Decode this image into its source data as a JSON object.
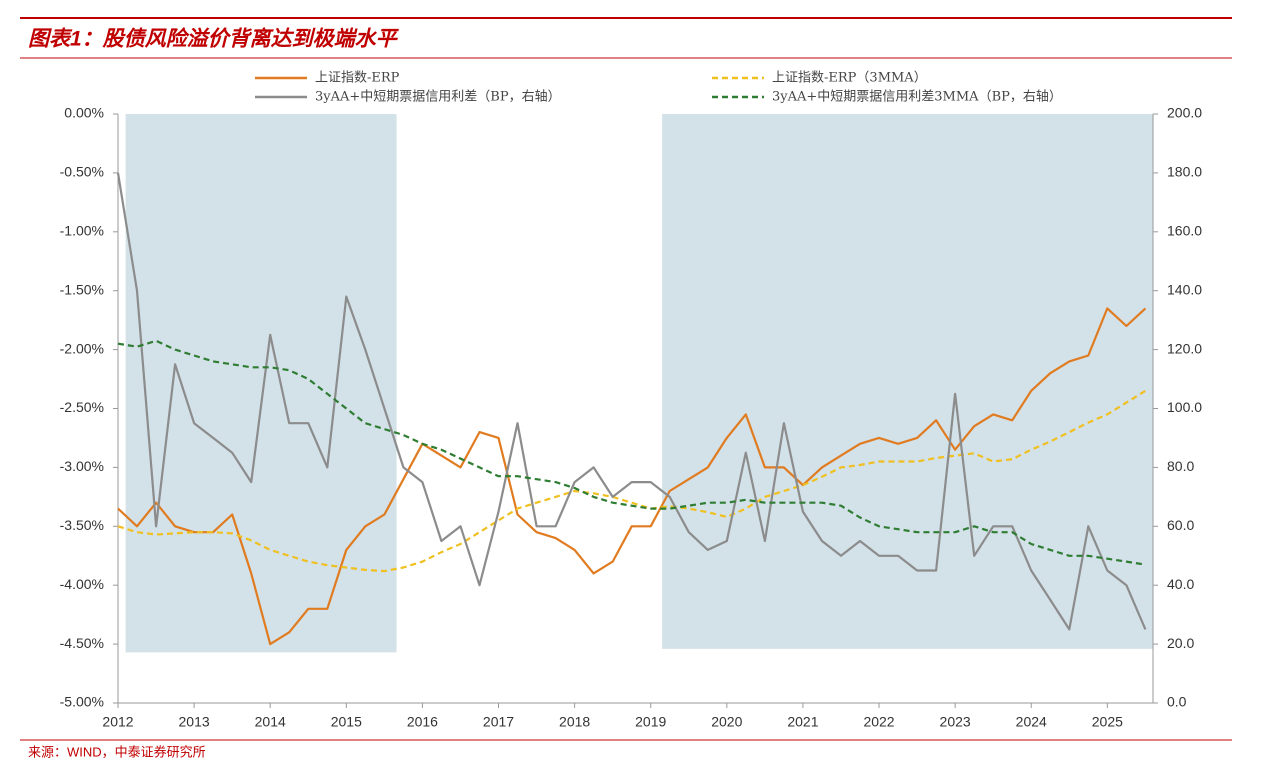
{
  "chart_data": {
    "type": "line",
    "title": "图表1：股债风险溢价背离达到极端水平",
    "source": "来源：WIND，中泰证券研究所",
    "xlim": [
      2012,
      2025.6
    ],
    "xticks": [
      2012,
      2013,
      2014,
      2015,
      2016,
      2017,
      2018,
      2019,
      2020,
      2021,
      2022,
      2023,
      2024,
      2025
    ],
    "ylim": [
      -5,
      0
    ],
    "yticks": [
      {
        "value": 0,
        "label": "0.00%"
      },
      {
        "value": -0.5,
        "label": "-0.50%"
      },
      {
        "value": -1,
        "label": "-1.00%"
      },
      {
        "value": -1.5,
        "label": "-1.50%"
      },
      {
        "value": -2,
        "label": "-2.00%"
      },
      {
        "value": -2.5,
        "label": "-2.50%"
      },
      {
        "value": -3,
        "label": "-3.00%"
      },
      {
        "value": -3.5,
        "label": "-3.50%"
      },
      {
        "value": -4,
        "label": "-4.00%"
      },
      {
        "value": -4.5,
        "label": "-4.50%"
      },
      {
        "value": -5,
        "label": "-5.00%"
      }
    ],
    "y2lim": [
      0,
      200
    ],
    "y2ticks": [
      {
        "value": 200,
        "label": "200.0"
      },
      {
        "value": 180,
        "label": "180.0"
      },
      {
        "value": 160,
        "label": "160.0"
      },
      {
        "value": 140,
        "label": "140.0"
      },
      {
        "value": 120,
        "label": "120.0"
      },
      {
        "value": 100,
        "label": "100.0"
      },
      {
        "value": 80,
        "label": "80.0"
      },
      {
        "value": 60,
        "label": "60.0"
      },
      {
        "value": 40,
        "label": "40.0"
      },
      {
        "value": 20,
        "label": "20.0"
      },
      {
        "value": 0,
        "label": "0.0"
      }
    ],
    "shaded_regions": [
      {
        "x": [
          2012.1,
          2015.66
        ],
        "y": [
          -4.57,
          0
        ],
        "color": "#d3e1e8"
      },
      {
        "x": [
          2019.15,
          2025.6
        ],
        "y": [
          -4.54,
          0
        ],
        "color": "#d3e1e8"
      }
    ],
    "x": [
      2012,
      2012.25,
      2012.5,
      2012.75,
      2013,
      2013.25,
      2013.5,
      2013.75,
      2014,
      2014.25,
      2014.5,
      2014.75,
      2015,
      2015.25,
      2015.5,
      2015.75,
      2016,
      2016.25,
      2016.5,
      2016.75,
      2017,
      2017.25,
      2017.5,
      2017.75,
      2018,
      2018.25,
      2018.5,
      2018.75,
      2019,
      2019.25,
      2019.5,
      2019.75,
      2020,
      2020.25,
      2020.5,
      2020.75,
      2021,
      2021.25,
      2021.5,
      2021.75,
      2022,
      2022.25,
      2022.5,
      2022.75,
      2023,
      2023.25,
      2023.5,
      2023.75,
      2024,
      2024.25,
      2024.5,
      2024.75,
      2025,
      2025.25,
      2025.5
    ],
    "series": [
      {
        "name": "上证指数-ERP",
        "color": "#e07b20",
        "dash": false,
        "axis": "y",
        "values": [
          -3.35,
          -3.5,
          -3.3,
          -3.5,
          -3.55,
          -3.55,
          -3.4,
          -3.9,
          -4.5,
          -4.4,
          -4.2,
          -4.2,
          -3.7,
          -3.5,
          -3.4,
          -3.1,
          -2.8,
          -2.9,
          -3.0,
          -2.7,
          -2.75,
          -3.4,
          -3.55,
          -3.6,
          -3.7,
          -3.9,
          -3.8,
          -3.5,
          -3.5,
          -3.2,
          -3.1,
          -3.0,
          -2.75,
          -2.55,
          -3.0,
          -3.0,
          -3.15,
          -3.0,
          -2.9,
          -2.8,
          -2.75,
          -2.8,
          -2.75,
          -2.6,
          -2.85,
          -2.65,
          -2.55,
          -2.6,
          -2.35,
          -2.2,
          -2.1,
          -2.05,
          -1.65,
          -1.8,
          -1.65
        ]
      },
      {
        "name": "上证指数-ERP（3MMA）",
        "color": "#f0c020",
        "dash": true,
        "axis": "y",
        "values": [
          -3.5,
          -3.55,
          -3.57,
          -3.56,
          -3.55,
          -3.55,
          -3.56,
          -3.62,
          -3.7,
          -3.75,
          -3.8,
          -3.83,
          -3.85,
          -3.87,
          -3.88,
          -3.85,
          -3.8,
          -3.72,
          -3.65,
          -3.55,
          -3.45,
          -3.35,
          -3.3,
          -3.25,
          -3.2,
          -3.22,
          -3.25,
          -3.3,
          -3.35,
          -3.33,
          -3.35,
          -3.38,
          -3.42,
          -3.35,
          -3.25,
          -3.2,
          -3.15,
          -3.08,
          -3.0,
          -2.98,
          -2.95,
          -2.95,
          -2.95,
          -2.92,
          -2.9,
          -2.88,
          -2.95,
          -2.93,
          -2.85,
          -2.78,
          -2.7,
          -2.62,
          -2.55,
          -2.45,
          -2.35
        ]
      },
      {
        "name": "3yAA+中短期票据信用利差（BP，右轴）",
        "color": "#8c8c8c",
        "dash": false,
        "axis": "y2",
        "values": [
          180,
          140,
          60,
          115,
          95,
          90,
          85,
          75,
          125,
          95,
          95,
          80,
          138,
          120,
          100,
          80,
          75,
          55,
          60,
          40,
          65,
          95,
          60,
          60,
          75,
          80,
          70,
          75,
          75,
          70,
          58,
          52,
          55,
          85,
          55,
          95,
          65,
          55,
          50,
          55,
          50,
          50,
          45,
          45,
          105,
          50,
          60,
          60,
          45,
          35,
          25,
          60,
          45,
          40,
          25
        ]
      },
      {
        "name": "3yAA+中短期票据信用利差3MMA（BP，右轴）",
        "color": "#2e7d32",
        "dash": true,
        "axis": "y2",
        "values": [
          122,
          121,
          123,
          120,
          118,
          116,
          115,
          114,
          114,
          113,
          110,
          105,
          100,
          95,
          93,
          91,
          88,
          86,
          83,
          80,
          77,
          77,
          76,
          75,
          73,
          70,
          68,
          67,
          66,
          66,
          67,
          68,
          68,
          69,
          68,
          68,
          68,
          68,
          67,
          63,
          60,
          59,
          58,
          58,
          58,
          60,
          58,
          58,
          54,
          52,
          50,
          50,
          49,
          48,
          47
        ]
      }
    ]
  }
}
